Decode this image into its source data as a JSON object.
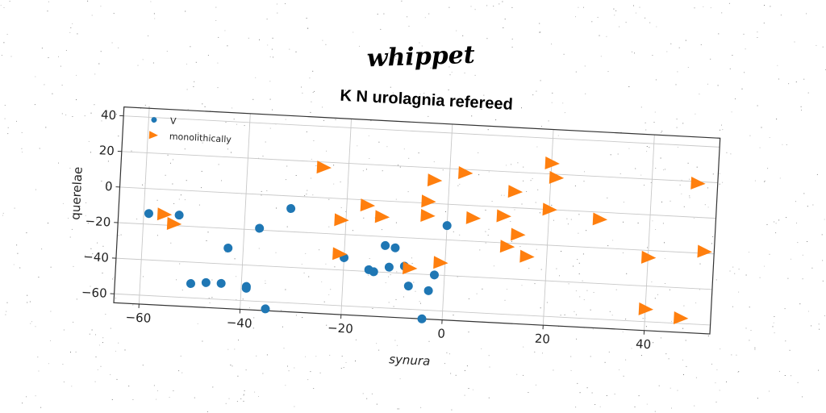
{
  "suptitle": "whippet",
  "chart_data": {
    "type": "scatter",
    "title": "K N urolagnia refereed",
    "xlabel": "synura",
    "ylabel": "querelae",
    "xlim": [
      -65,
      53
    ],
    "ylim": [
      -65,
      45
    ],
    "xticks": [
      -60,
      -40,
      -20,
      0,
      20,
      40
    ],
    "yticks": [
      -60,
      -40,
      -20,
      0,
      20,
      40
    ],
    "grid": true,
    "legend_position": "top-left",
    "series": [
      {
        "name": "V",
        "marker": "circle",
        "color": "#1f77b4",
        "points": [
          [
            -59,
            -14
          ],
          [
            -53,
            -14
          ],
          [
            -50,
            -52
          ],
          [
            -47,
            -51
          ],
          [
            -44,
            -51
          ],
          [
            -43,
            -31
          ],
          [
            -39,
            -52
          ],
          [
            -39,
            -53
          ],
          [
            -37,
            -19
          ],
          [
            -35,
            -64
          ],
          [
            -31,
            -7
          ],
          [
            -20,
            -33
          ],
          [
            -15,
            -39
          ],
          [
            -14,
            -40
          ],
          [
            -12,
            -25
          ],
          [
            -11,
            -37
          ],
          [
            -10,
            -26
          ],
          [
            -8,
            -36
          ],
          [
            -7,
            -47
          ],
          [
            -4,
            -65
          ],
          [
            -3,
            -49
          ],
          [
            -2,
            -40
          ],
          [
            0,
            -12
          ]
        ]
      },
      {
        "name": "monolithically",
        "marker": "triangle-right",
        "color": "#ff7f0e",
        "points": [
          [
            -56,
            -14
          ],
          [
            -54,
            -19
          ],
          [
            -25,
            17
          ],
          [
            -21,
            -12
          ],
          [
            -21,
            -31
          ],
          [
            -16,
            -3
          ],
          [
            -13,
            -9
          ],
          [
            -7,
            -37
          ],
          [
            -4,
            1
          ],
          [
            -4,
            -7
          ],
          [
            -3,
            13
          ],
          [
            -1,
            -33
          ],
          [
            3,
            18
          ],
          [
            5,
            -7
          ],
          [
            11,
            -5
          ],
          [
            12,
            -22
          ],
          [
            13,
            9
          ],
          [
            14,
            -15
          ],
          [
            16,
            -27
          ],
          [
            20,
            26
          ],
          [
            20,
            0
          ],
          [
            21,
            18
          ],
          [
            30,
            -4
          ],
          [
            40,
            -24
          ],
          [
            40,
            -53
          ],
          [
            47,
            -57
          ],
          [
            49,
            19
          ],
          [
            51,
            -19
          ]
        ]
      }
    ]
  }
}
